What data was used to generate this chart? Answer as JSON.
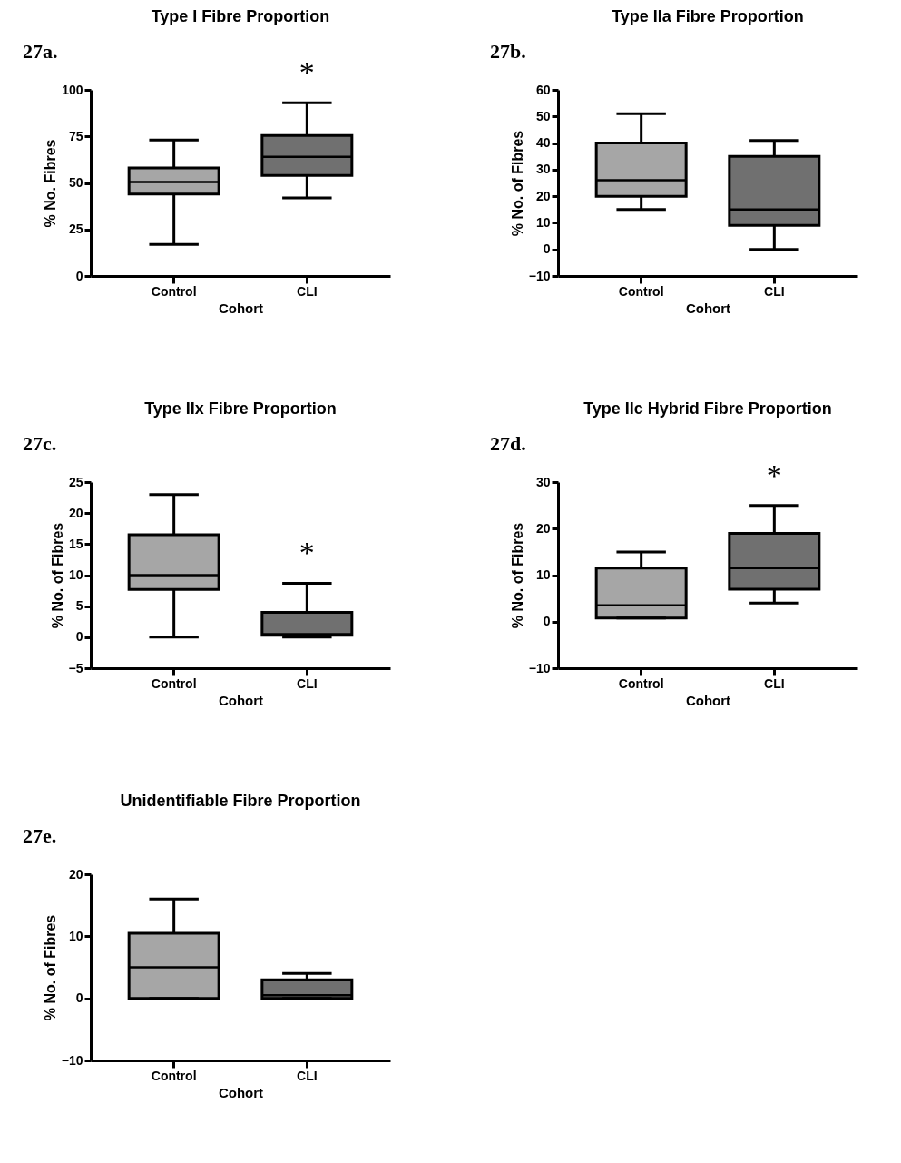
{
  "chart_data": [
    {
      "type": "box",
      "title": "Type I Fibre Proportion",
      "xlabel": "Cohort",
      "ylabel": "% No. Fibres",
      "categories": [
        "Control",
        "CLI"
      ],
      "colors": [
        "#a6a6a6",
        "#707070"
      ],
      "ylim": [
        0,
        100
      ],
      "yticks": [
        0,
        25,
        50,
        75,
        100
      ],
      "boxes": [
        {
          "low": 17,
          "q1": 44,
          "median": 50.5,
          "q3": 58,
          "high": 73
        },
        {
          "low": 42,
          "q1": 54,
          "median": 64,
          "q3": 75.5,
          "high": 93
        }
      ],
      "annotations": [
        "27a.",
        {
          "text": "*",
          "x": "CLI",
          "y": 93
        }
      ]
    },
    {
      "type": "box",
      "title": "Type IIa Fibre Proportion",
      "xlabel": "Cohort",
      "ylabel": "% No. of Fibres",
      "categories": [
        "Control",
        "CLI"
      ],
      "colors": [
        "#a6a6a6",
        "#707070"
      ],
      "ylim": [
        -10,
        60
      ],
      "yticks": [
        -10,
        0,
        10,
        20,
        30,
        40,
        50,
        60
      ],
      "boxes": [
        {
          "low": 15,
          "q1": 20,
          "median": 26,
          "q3": 40,
          "high": 51
        },
        {
          "low": 0,
          "q1": 9,
          "median": 15,
          "q3": 35,
          "high": 41
        }
      ],
      "annotations": [
        "27b."
      ]
    },
    {
      "type": "box",
      "title": "Type IIx Fibre Proportion",
      "xlabel": "Cohort",
      "ylabel": "% No. of Fibres",
      "categories": [
        "Control",
        "CLI"
      ],
      "colors": [
        "#a6a6a6",
        "#707070"
      ],
      "ylim": [
        -5,
        25
      ],
      "yticks": [
        -5,
        0,
        5,
        10,
        15,
        20,
        25
      ],
      "boxes": [
        {
          "low": 0,
          "q1": 7.7,
          "median": 10,
          "q3": 16.5,
          "high": 23
        },
        {
          "low": 0,
          "q1": 0.3,
          "median": 0.5,
          "q3": 4,
          "high": 8.7
        }
      ],
      "annotations": [
        "27c.",
        {
          "text": "*",
          "x": "CLI",
          "y": 8.7
        }
      ]
    },
    {
      "type": "box",
      "title": "Type IIc Hybrid Fibre Proportion",
      "xlabel": "Cohort",
      "ylabel": "% No. of Fibres",
      "categories": [
        "Control",
        "CLI"
      ],
      "colors": [
        "#a6a6a6",
        "#707070"
      ],
      "ylim": [
        -10,
        30
      ],
      "yticks": [
        -10,
        0,
        10,
        20,
        30
      ],
      "boxes": [
        {
          "low": 0.8,
          "q1": 0.8,
          "median": 3.5,
          "q3": 11.5,
          "high": 15
        },
        {
          "low": 4,
          "q1": 7,
          "median": 11.5,
          "q3": 19,
          "high": 25
        }
      ],
      "annotations": [
        "27d.",
        {
          "text": "*",
          "x": "CLI",
          "y": 25
        }
      ]
    },
    {
      "type": "box",
      "title": "Unidentifiable Fibre Proportion",
      "xlabel": "Cohort",
      "ylabel": "% No. of Fibres",
      "categories": [
        "Control",
        "CLI"
      ],
      "colors": [
        "#a6a6a6",
        "#707070"
      ],
      "ylim": [
        -10,
        20
      ],
      "yticks": [
        -10,
        0,
        10,
        20
      ],
      "boxes": [
        {
          "low": 0,
          "q1": 0,
          "median": 5,
          "q3": 10.5,
          "high": 16
        },
        {
          "low": 0,
          "q1": 0,
          "median": 0.5,
          "q3": 3,
          "high": 4
        }
      ],
      "annotations": [
        "27e."
      ]
    }
  ]
}
